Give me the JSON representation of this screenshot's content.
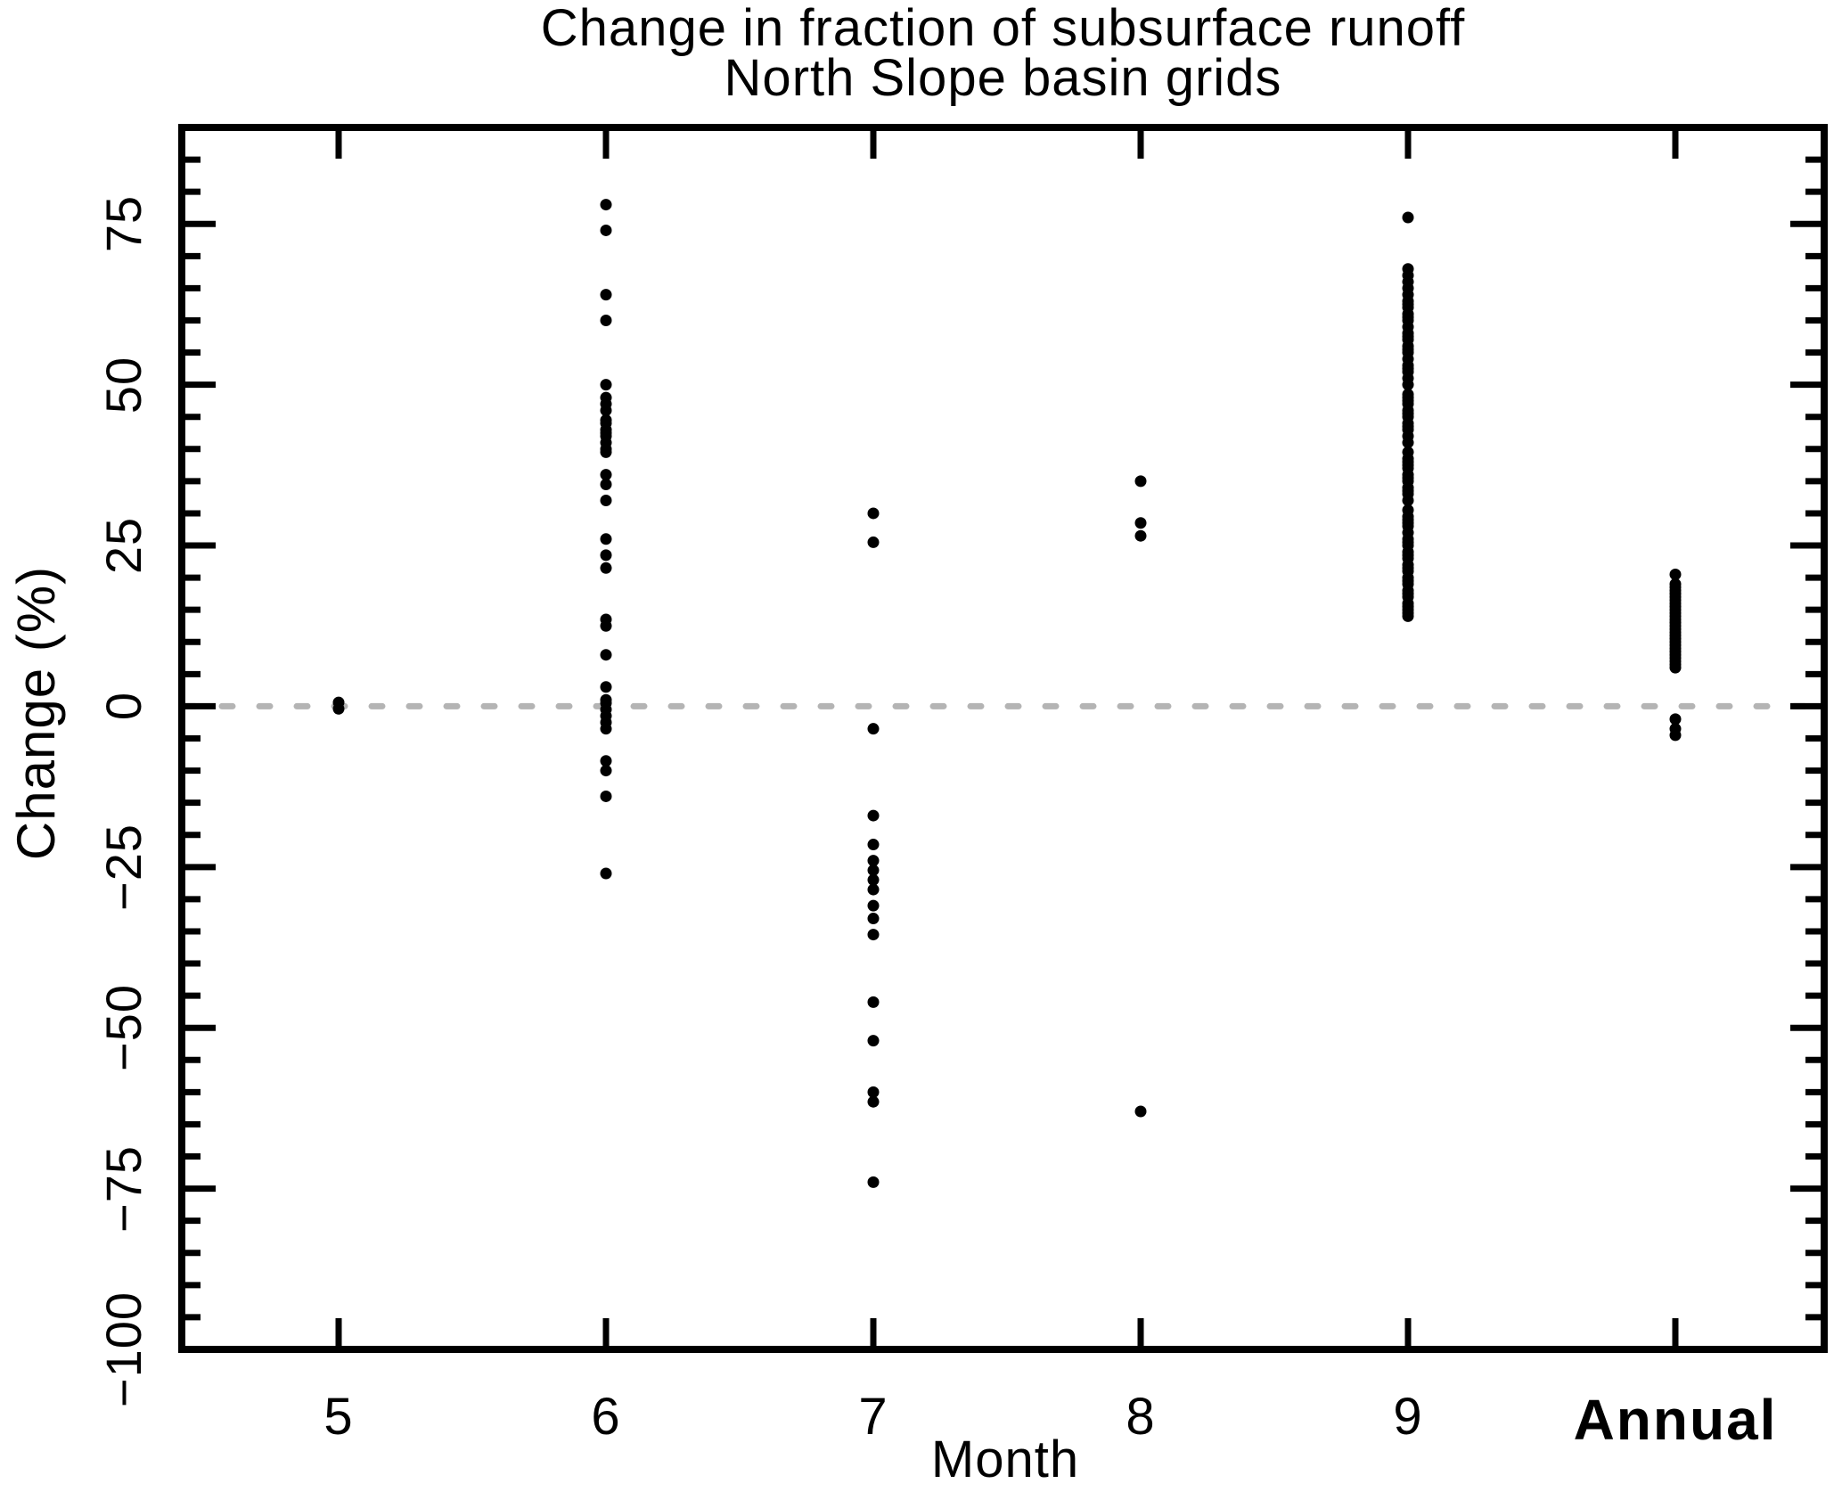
{
  "chart_data": {
    "type": "scatter",
    "title_line1": "Change in fraction of subsurface runoff",
    "title_line2": "North Slope basin grids",
    "xlabel": "Month",
    "ylabel": "Change (%)",
    "categories": [
      "5",
      "6",
      "7",
      "8",
      "9",
      "Annual"
    ],
    "bold_categories": [
      "Annual"
    ],
    "ylim": [
      -100,
      90
    ],
    "ytick_values": [
      75,
      50,
      25,
      0,
      -25,
      -50,
      -75,
      -100
    ],
    "ytick_labels": [
      "75",
      "50",
      "25",
      "0",
      "−25",
      "−50",
      "−75",
      "−100"
    ],
    "minor_tick_step": 5,
    "major_tick_step": 25,
    "grid": false,
    "legend": false,
    "zero_line": {
      "y": 0,
      "style": "dotted",
      "color": "#b4b4b4"
    },
    "point_color": "#000000",
    "series": [
      {
        "category": "5",
        "values": [
          0.6,
          -0.4
        ]
      },
      {
        "category": "6",
        "values": [
          78,
          74,
          64,
          60,
          50,
          48,
          47,
          46,
          44.5,
          44,
          43,
          42.5,
          42,
          41,
          40,
          39.5,
          36,
          34.5,
          32,
          26,
          23.5,
          21.5,
          13.5,
          12.5,
          8,
          3,
          1,
          0.5,
          -0.5,
          -1.5,
          -2.5,
          -3.5,
          -8.5,
          -10,
          -14,
          -26
        ]
      },
      {
        "category": "7",
        "values": [
          30,
          25.5,
          -3.5,
          -17,
          -21.5,
          -24,
          -25.5,
          -27,
          -28.5,
          -31,
          -33,
          -35.5,
          -46,
          -52,
          -60,
          -61.5,
          -74
        ]
      },
      {
        "category": "8",
        "values": [
          35,
          28.5,
          26.5,
          -63
        ]
      },
      {
        "category": "9",
        "values": [
          76,
          68,
          67,
          66,
          65,
          64,
          63,
          62.5,
          62,
          61,
          60.5,
          60,
          59,
          58,
          57.5,
          57,
          56,
          55.5,
          55,
          54,
          53,
          52.5,
          52,
          51,
          50,
          48.5,
          48,
          47.5,
          47,
          46,
          45.5,
          45,
          44,
          43.5,
          43,
          42,
          41,
          39.5,
          38.5,
          38,
          37.5,
          37,
          36,
          35.5,
          35,
          34,
          33.5,
          33,
          32,
          30.5,
          29.5,
          29,
          28.5,
          28,
          27,
          26,
          25.5,
          25,
          24,
          23.5,
          23,
          22,
          21.5,
          21,
          20,
          19.5,
          19,
          18,
          17.5,
          17,
          16,
          15.5,
          15,
          14.5,
          14
        ]
      },
      {
        "category": "Annual",
        "values": [
          20.5,
          19,
          18.5,
          18,
          17.5,
          17,
          16.5,
          16,
          15.5,
          15,
          14.5,
          14,
          13.5,
          13,
          12.5,
          12,
          11.5,
          11,
          10.5,
          10,
          9.5,
          9,
          8.5,
          8,
          7.5,
          7,
          6.5,
          6,
          -2,
          -3.5,
          -4.5
        ]
      }
    ]
  }
}
